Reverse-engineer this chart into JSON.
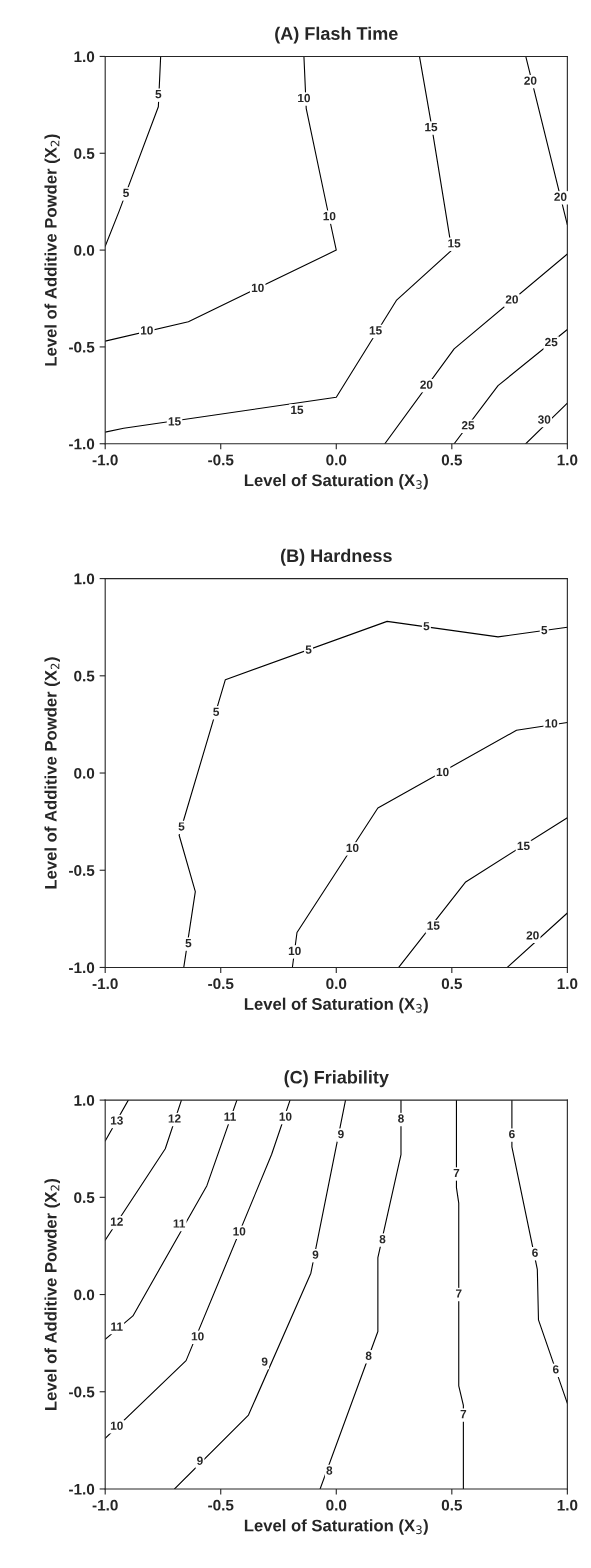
{
  "chart_data": [
    {
      "type": "line",
      "title": "(A) Flash Time",
      "xlabel": "Level of Saturation (X$_{3}$)",
      "ylabel": "Level of Additive Powder (X$_{2}$)",
      "xlim": [
        -1,
        1
      ],
      "ylim": [
        -1,
        1
      ],
      "xticks": [
        {
          "value": -1,
          "label": "-1.0"
        },
        {
          "value": -0.5,
          "label": "-0.5"
        },
        {
          "value": 0,
          "label": "0.0"
        },
        {
          "value": 0.5,
          "label": "0.5"
        },
        {
          "value": 1,
          "label": "1.0"
        }
      ],
      "yticks": [
        {
          "value": -1,
          "label": "-1.0"
        },
        {
          "value": -0.5,
          "label": "-0.5"
        },
        {
          "value": 0,
          "label": "0.0"
        },
        {
          "value": 0.5,
          "label": "0.5"
        },
        {
          "value": 1,
          "label": "1.0"
        }
      ],
      "grid": false,
      "marker": "none",
      "line_style": "solid",
      "series": [
        {
          "color": "#000000",
          "x": [
            -1,
            -0.94,
            -0.77,
            -0.76
          ],
          "values": [
            0.02,
            0.2,
            0.74,
            1
          ]
        },
        {
          "color": "#000000",
          "x": [
            -1,
            -0.64,
            0.0,
            -0.04,
            -0.13,
            -0.14
          ],
          "values": [
            -0.47,
            -0.37,
            0.0,
            0.22,
            0.73,
            1
          ]
        },
        {
          "color": "#000000",
          "x": [
            -1,
            -0.92,
            0,
            0.26,
            0.5,
            0.41,
            0.36
          ],
          "values": [
            -0.94,
            -0.92,
            -0.76,
            -0.26,
            0.0,
            0.66,
            1
          ]
        },
        {
          "color": "#000000",
          "x": [
            0.21,
            0.51,
            1
          ],
          "values": [
            -1,
            -0.51,
            -0.02
          ]
        },
        {
          "color": "#000000",
          "x": [
            0.82,
            1
          ],
          "values": [
            1,
            0.13
          ]
        },
        {
          "color": "#000000",
          "x": [
            0.51,
            0.7,
            1
          ],
          "values": [
            -1,
            -0.7,
            -0.41
          ]
        },
        {
          "color": "#000000",
          "x": [
            0.82,
            1
          ],
          "values": [
            -1,
            -0.79
          ]
        }
      ],
      "annotations": [
        {
          "text": "5",
          "x": -0.77,
          "y": 0.8
        },
        {
          "text": "5",
          "x": -0.91,
          "y": 0.29
        },
        {
          "text": "10",
          "x": -0.82,
          "y": -0.42
        },
        {
          "text": "10",
          "x": -0.34,
          "y": -0.2
        },
        {
          "text": "10",
          "x": -0.03,
          "y": 0.17
        },
        {
          "text": "10",
          "x": -0.14,
          "y": 0.78
        },
        {
          "text": "15",
          "x": -0.7,
          "y": -0.89
        },
        {
          "text": "15",
          "x": -0.17,
          "y": -0.83
        },
        {
          "text": "15",
          "x": 0.17,
          "y": -0.42
        },
        {
          "text": "15",
          "x": 0.51,
          "y": 0.03
        },
        {
          "text": "15",
          "x": 0.41,
          "y": 0.63
        },
        {
          "text": "20",
          "x": 0.39,
          "y": -0.7
        },
        {
          "text": "20",
          "x": 0.76,
          "y": -0.26
        },
        {
          "text": "20",
          "x": 0.84,
          "y": 0.87
        },
        {
          "text": "20",
          "x": 0.97,
          "y": 0.27
        },
        {
          "text": "25",
          "x": 0.57,
          "y": -0.91
        },
        {
          "text": "25",
          "x": 0.93,
          "y": -0.48
        },
        {
          "text": "30",
          "x": 0.9,
          "y": -0.88
        }
      ]
    },
    {
      "type": "line",
      "title": "(B) Hardness",
      "xlabel": "Level of Saturation (X$_{3}$)",
      "ylabel": "Level of Additive Powder (X$_{2}$)",
      "xlim": [
        -1,
        1
      ],
      "ylim": [
        -1,
        1
      ],
      "xticks": [
        {
          "value": -1,
          "label": "-1.0"
        },
        {
          "value": -0.5,
          "label": "-0.5"
        },
        {
          "value": 0,
          "label": "0.0"
        },
        {
          "value": 0.5,
          "label": "0.5"
        },
        {
          "value": 1,
          "label": "1.0"
        }
      ],
      "yticks": [
        {
          "value": -1,
          "label": "-1.0"
        },
        {
          "value": -0.5,
          "label": "-0.5"
        },
        {
          "value": 0,
          "label": "0.0"
        },
        {
          "value": 0.5,
          "label": "0.5"
        },
        {
          "value": 1,
          "label": "1.0"
        }
      ],
      "grid": false,
      "marker": "none",
      "line_style": "solid",
      "series": [
        {
          "color": "#000000",
          "x": [
            -0.66,
            -0.61,
            -0.68,
            -0.48,
            0.22,
            0.7,
            1
          ],
          "values": [
            -1,
            -0.61,
            -0.32,
            0.48,
            0.78,
            0.7,
            0.75
          ]
        },
        {
          "color": "#000000",
          "x": [
            -0.19,
            -0.17,
            0.18,
            0.78,
            1
          ],
          "values": [
            -1,
            -0.82,
            -0.18,
            0.22,
            0.26
          ]
        },
        {
          "color": "#000000",
          "x": [
            0.27,
            0.56,
            1
          ],
          "values": [
            -1,
            -0.56,
            -0.23
          ]
        },
        {
          "color": "#000000",
          "x": [
            0.74,
            1
          ],
          "values": [
            -1,
            -0.72
          ]
        }
      ],
      "annotations": [
        {
          "text": "5",
          "x": -0.64,
          "y": -0.88
        },
        {
          "text": "5",
          "x": -0.67,
          "y": -0.28
        },
        {
          "text": "5",
          "x": -0.52,
          "y": 0.31
        },
        {
          "text": "5",
          "x": -0.12,
          "y": 0.63
        },
        {
          "text": "5",
          "x": 0.39,
          "y": 0.75
        },
        {
          "text": "5",
          "x": 0.9,
          "y": 0.73
        },
        {
          "text": "10",
          "x": -0.18,
          "y": -0.92
        },
        {
          "text": "10",
          "x": 0.07,
          "y": -0.39
        },
        {
          "text": "10",
          "x": 0.46,
          "y": 0.0
        },
        {
          "text": "10",
          "x": 0.93,
          "y": 0.25
        },
        {
          "text": "15",
          "x": 0.42,
          "y": -0.79
        },
        {
          "text": "15",
          "x": 0.81,
          "y": -0.38
        },
        {
          "text": "20",
          "x": 0.85,
          "y": -0.84
        }
      ]
    },
    {
      "type": "line",
      "title": "(C) Friability",
      "xlabel": "Level of Saturation (X$_{3}$)",
      "ylabel": "Level of Additive Powder (X$_{2}$)",
      "xlim": [
        -1,
        1
      ],
      "ylim": [
        -1,
        1
      ],
      "xticks": [
        {
          "value": -1,
          "label": "-1.0"
        },
        {
          "value": -0.5,
          "label": "-0.5"
        },
        {
          "value": 0,
          "label": "0.0"
        },
        {
          "value": 0.5,
          "label": "0.5"
        },
        {
          "value": 1,
          "label": "1.0"
        }
      ],
      "yticks": [
        {
          "value": -1,
          "label": "-1.0"
        },
        {
          "value": -0.5,
          "label": "-0.5"
        },
        {
          "value": 0,
          "label": "0.0"
        },
        {
          "value": 0.5,
          "label": "0.5"
        },
        {
          "value": 1,
          "label": "1.0"
        }
      ],
      "grid": false,
      "marker": "none",
      "line_style": "solid",
      "series": [
        {
          "color": "#000000",
          "x": [
            -1,
            -0.9
          ],
          "values": [
            0.79,
            1
          ]
        },
        {
          "color": "#000000",
          "x": [
            -1,
            -0.74,
            -0.67
          ],
          "values": [
            0.28,
            0.75,
            1
          ]
        },
        {
          "color": "#000000",
          "x": [
            -1,
            -0.88,
            -0.56,
            -0.43
          ],
          "values": [
            -0.23,
            -0.11,
            0.56,
            1
          ]
        },
        {
          "color": "#000000",
          "x": [
            -1,
            -0.65,
            -0.28,
            -0.2
          ],
          "values": [
            -0.74,
            -0.34,
            0.72,
            1
          ]
        },
        {
          "color": "#000000",
          "x": [
            -0.7,
            -0.38,
            -0.11,
            0.04
          ],
          "values": [
            -1,
            -0.62,
            0.11,
            1
          ]
        },
        {
          "color": "#000000",
          "x": [
            -0.07,
            0.18,
            0.18,
            0.28,
            0.28
          ],
          "values": [
            -1,
            -0.19,
            0.19,
            0.72,
            1
          ]
        },
        {
          "color": "#000000",
          "x": [
            0.55,
            0.55,
            0.53,
            0.53,
            0.52,
            0.52
          ],
          "values": [
            -1,
            -0.57,
            -0.47,
            0.47,
            0.55,
            1
          ]
        },
        {
          "color": "#000000",
          "x": [
            1,
            0.875,
            0.87,
            0.76,
            0.76
          ],
          "values": [
            -0.56,
            -0.13,
            0.13,
            0.76,
            1
          ]
        }
      ],
      "annotations": [
        {
          "text": "13",
          "x": -0.95,
          "y": 0.89
        },
        {
          "text": "12",
          "x": -0.95,
          "y": 0.37
        },
        {
          "text": "12",
          "x": -0.7,
          "y": 0.9
        },
        {
          "text": "11",
          "x": -0.95,
          "y": -0.17
        },
        {
          "text": "11",
          "x": -0.68,
          "y": 0.36
        },
        {
          "text": "11",
          "x": -0.46,
          "y": 0.91
        },
        {
          "text": "10",
          "x": -0.95,
          "y": -0.68
        },
        {
          "text": "10",
          "x": -0.6,
          "y": -0.22
        },
        {
          "text": "10",
          "x": -0.42,
          "y": 0.32
        },
        {
          "text": "10",
          "x": -0.22,
          "y": 0.91
        },
        {
          "text": "9",
          "x": -0.59,
          "y": -0.86
        },
        {
          "text": "9",
          "x": -0.31,
          "y": -0.35
        },
        {
          "text": "9",
          "x": -0.09,
          "y": 0.2
        },
        {
          "text": "9",
          "x": 0.02,
          "y": 0.82
        },
        {
          "text": "8",
          "x": -0.03,
          "y": -0.91
        },
        {
          "text": "8",
          "x": 0.14,
          "y": -0.32
        },
        {
          "text": "8",
          "x": 0.2,
          "y": 0.28
        },
        {
          "text": "8",
          "x": 0.28,
          "y": 0.9
        },
        {
          "text": "7",
          "x": 0.52,
          "y": 0.62
        },
        {
          "text": "7",
          "x": 0.53,
          "y": 0.0
        },
        {
          "text": "7",
          "x": 0.55,
          "y": -0.62
        },
        {
          "text": "6",
          "x": 0.76,
          "y": 0.82
        },
        {
          "text": "6",
          "x": 0.86,
          "y": 0.21
        },
        {
          "text": "6",
          "x": 0.95,
          "y": -0.39
        }
      ]
    }
  ]
}
